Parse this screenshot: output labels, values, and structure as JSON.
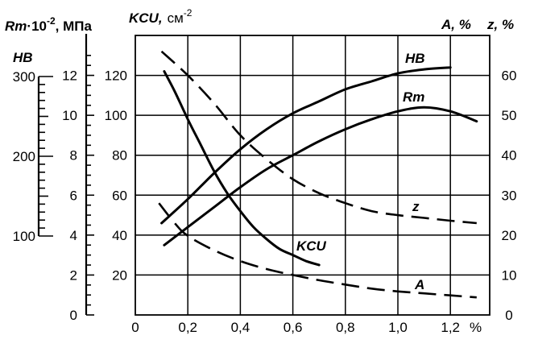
{
  "chart_data": {
    "type": "line",
    "x_ticks": [
      "0",
      "0,2",
      "0,4",
      "0,6",
      "0,8",
      "1,0",
      "1,2"
    ],
    "x_unit": "%",
    "x_range": [
      0,
      1.3
    ],
    "axes": {
      "kcu": {
        "title_main": "KCU,",
        "title_unit": "см",
        "title_exp": "-2",
        "ticks": [
          "20",
          "40",
          "60",
          "80",
          "100",
          "120"
        ],
        "range": [
          0,
          140
        ]
      },
      "rm": {
        "title_main": "Rm",
        "title_mid": "·10",
        "title_exp": "-2",
        "title_unit": ", МПа",
        "ticks": [
          "0",
          "2",
          "4",
          "6",
          "8",
          "10",
          "12"
        ],
        "range": [
          0,
          14
        ]
      },
      "hb": {
        "title": "HB",
        "ticks": [
          "100",
          "200",
          "300"
        ],
        "range": [
          100,
          300
        ]
      },
      "az": {
        "title_a": "A, %",
        "title_z": "z, %",
        "ticks": [
          "0",
          "10",
          "20",
          "30",
          "40",
          "50",
          "60"
        ],
        "range": [
          0,
          70
        ]
      }
    },
    "series": [
      {
        "name": "HB",
        "axis": "kcu",
        "style": "solid",
        "points": [
          [
            0.1,
            46
          ],
          [
            0.2,
            58
          ],
          [
            0.3,
            71
          ],
          [
            0.4,
            83
          ],
          [
            0.5,
            93
          ],
          [
            0.6,
            101
          ],
          [
            0.7,
            107
          ],
          [
            0.8,
            113
          ],
          [
            0.9,
            117
          ],
          [
            1.0,
            121
          ],
          [
            1.1,
            123
          ],
          [
            1.2,
            124
          ]
        ]
      },
      {
        "name": "Rm",
        "axis": "kcu",
        "style": "solid",
        "points": [
          [
            0.11,
            35
          ],
          [
            0.2,
            44
          ],
          [
            0.3,
            54
          ],
          [
            0.4,
            64
          ],
          [
            0.5,
            73
          ],
          [
            0.6,
            80
          ],
          [
            0.7,
            87
          ],
          [
            0.8,
            93
          ],
          [
            0.9,
            98
          ],
          [
            1.0,
            102
          ],
          [
            1.1,
            104
          ],
          [
            1.2,
            102
          ],
          [
            1.3,
            97
          ]
        ]
      },
      {
        "name": "KCU",
        "axis": "kcu",
        "style": "solid",
        "points": [
          [
            0.11,
            122
          ],
          [
            0.15,
            112
          ],
          [
            0.2,
            98
          ],
          [
            0.25,
            85
          ],
          [
            0.3,
            72
          ],
          [
            0.35,
            61
          ],
          [
            0.4,
            52
          ],
          [
            0.45,
            44
          ],
          [
            0.5,
            38
          ],
          [
            0.55,
            33
          ],
          [
            0.6,
            30
          ],
          [
            0.65,
            27
          ],
          [
            0.7,
            25
          ]
        ]
      },
      {
        "name": "z",
        "axis": "az",
        "style": "dashed",
        "points": [
          [
            0.1,
            66
          ],
          [
            0.2,
            60
          ],
          [
            0.3,
            53
          ],
          [
            0.4,
            45
          ],
          [
            0.5,
            39
          ],
          [
            0.6,
            34
          ],
          [
            0.7,
            30.5
          ],
          [
            0.8,
            28
          ],
          [
            0.9,
            26
          ],
          [
            1.0,
            25
          ],
          [
            1.1,
            24.3
          ],
          [
            1.2,
            23.6
          ],
          [
            1.3,
            23
          ]
        ]
      },
      {
        "name": "A",
        "axis": "az",
        "style": "dashed",
        "points": [
          [
            0.09,
            28
          ],
          [
            0.15,
            23
          ],
          [
            0.2,
            19.8
          ],
          [
            0.3,
            16.2
          ],
          [
            0.4,
            13.5
          ],
          [
            0.5,
            11.5
          ],
          [
            0.6,
            10
          ],
          [
            0.7,
            8.7
          ],
          [
            0.8,
            7.6
          ],
          [
            0.9,
            6.6
          ],
          [
            1.0,
            5.9
          ],
          [
            1.1,
            5.4
          ],
          [
            1.2,
            4.9
          ],
          [
            1.3,
            4.4
          ]
        ]
      }
    ],
    "grid": true
  }
}
